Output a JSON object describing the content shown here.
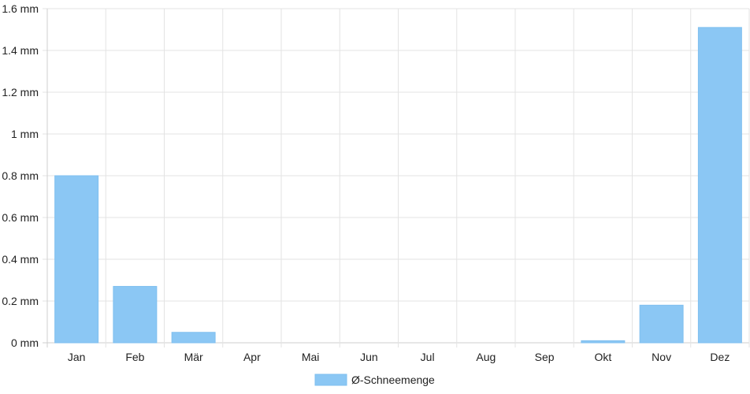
{
  "chart_data": {
    "type": "bar",
    "categories": [
      "Jan",
      "Feb",
      "Mär",
      "Apr",
      "Mai",
      "Jun",
      "Jul",
      "Aug",
      "Sep",
      "Okt",
      "Nov",
      "Dez"
    ],
    "series": [
      {
        "name": "Ø-Schneemenge",
        "values": [
          0.8,
          0.27,
          0.05,
          0,
          0,
          0,
          0,
          0,
          0,
          0.01,
          0.18,
          1.51
        ]
      }
    ],
    "y_ticks": [
      "0 mm",
      "0.2 mm",
      "0.4 mm",
      "0.6 mm",
      "0.8 mm",
      "1 mm",
      "1.2 mm",
      "1.4 mm",
      "1.6 mm"
    ],
    "ylim": [
      0,
      1.6
    ],
    "grid": true,
    "legend_position": "bottom",
    "colors": {
      "bar": "#8bc7f4",
      "bar_border": "#7fbfef",
      "grid": "#e3e3e3",
      "axis": "#cfcfcf"
    }
  }
}
